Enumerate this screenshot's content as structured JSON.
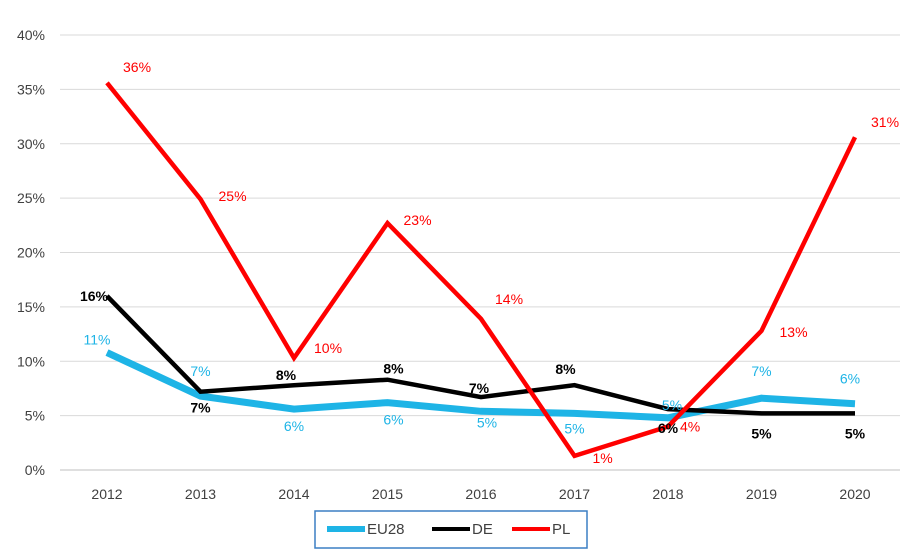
{
  "chart_data": {
    "type": "line",
    "title": "",
    "xlabel": "",
    "ylabel": "",
    "categories": [
      "2012",
      "2013",
      "2014",
      "2015",
      "2016",
      "2017",
      "2018",
      "2019",
      "2020"
    ],
    "ylim": [
      0,
      40
    ],
    "yticks": [
      0,
      5,
      10,
      15,
      20,
      25,
      30,
      35,
      40
    ],
    "ytick_labels": [
      "0%",
      "5%",
      "10%",
      "15%",
      "20%",
      "25%",
      "30%",
      "35%",
      "40%"
    ],
    "grid": "horizontal",
    "legend_position": "bottom",
    "series": [
      {
        "name": "EU28",
        "color": "#1EB4E6",
        "values": [
          10.8,
          6.8,
          5.6,
          6.2,
          5.4,
          5.2,
          4.8,
          6.6,
          6.1
        ],
        "labels": [
          "11%",
          "7%",
          "6%",
          "6%",
          "5%",
          "5%",
          "5%",
          "7%",
          "6%"
        ]
      },
      {
        "name": "DE",
        "color": "#000000",
        "values": [
          16.0,
          7.2,
          7.8,
          8.3,
          6.7,
          7.8,
          5.6,
          5.2,
          5.2
        ],
        "labels": [
          "16%",
          "7%",
          "8%",
          "8%",
          "7%",
          "8%",
          "6%",
          "5%",
          "5%"
        ]
      },
      {
        "name": "PL",
        "color": "#FF0000",
        "values": [
          35.6,
          24.9,
          10.3,
          22.7,
          13.9,
          1.3,
          4.0,
          12.8,
          30.6
        ],
        "labels": [
          "36%",
          "25%",
          "10%",
          "23%",
          "14%",
          "1%",
          "4%",
          "13%",
          "31%"
        ]
      }
    ]
  }
}
